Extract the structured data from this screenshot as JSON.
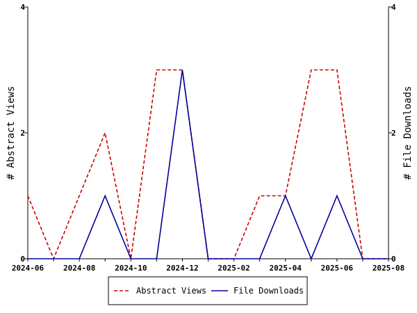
{
  "chart_data": {
    "type": "line",
    "title": "",
    "x_ticks": [
      "2024-06",
      "2024-08",
      "2024-10",
      "2024-12",
      "2025-02",
      "2025-04",
      "2025-06",
      "2025-08"
    ],
    "x": [
      "2024-06",
      "2024-07",
      "2024-08",
      "2024-09",
      "2024-10",
      "2024-11",
      "2024-12",
      "2025-01",
      "2025-02",
      "2025-03",
      "2025-04",
      "2025-05",
      "2025-06",
      "2025-07",
      "2025-08"
    ],
    "ylabel_left": "# Abstract Views",
    "ylabel_right": "# File Downloads",
    "ylim_left": [
      0,
      4
    ],
    "ylim_right": [
      0,
      4
    ],
    "y_ticks_left": [
      "0",
      "2",
      "4"
    ],
    "y_ticks_right": [
      "0",
      "2",
      "4"
    ],
    "grid": false,
    "legend_position": "bottom",
    "series": [
      {
        "name": "Abstract Views",
        "axis": "left",
        "color": "#cc0000",
        "style": "dashed",
        "values": [
          1,
          0,
          1,
          2,
          0,
          3,
          3,
          0,
          0,
          1,
          1,
          3,
          3,
          0,
          0
        ]
      },
      {
        "name": "File Downloads",
        "axis": "right",
        "color": "#000099",
        "style": "solid",
        "values": [
          0,
          0,
          0,
          1,
          0,
          0,
          3,
          0,
          0,
          0,
          1,
          0,
          1,
          0,
          0
        ]
      }
    ]
  }
}
